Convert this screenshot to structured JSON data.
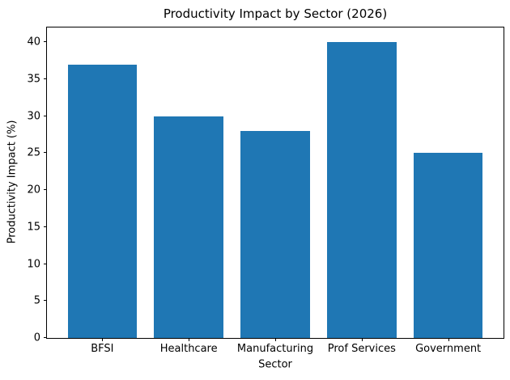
{
  "chart_data": {
    "type": "bar",
    "title": "Productivity Impact by Sector (2026)",
    "xlabel": "Sector",
    "ylabel": "Productivity Impact (%)",
    "categories": [
      "BFSI",
      "Healthcare",
      "Manufacturing",
      "Prof Services",
      "Government"
    ],
    "values": [
      37,
      30,
      28,
      40,
      25
    ],
    "yticks": [
      0,
      5,
      10,
      15,
      20,
      25,
      30,
      35,
      40
    ],
    "ylim": [
      0,
      42
    ],
    "xlim": [
      -0.64,
      4.64
    ],
    "bar_width": 0.8,
    "bar_color": "#1f77b4",
    "grid": false,
    "legend": null
  }
}
